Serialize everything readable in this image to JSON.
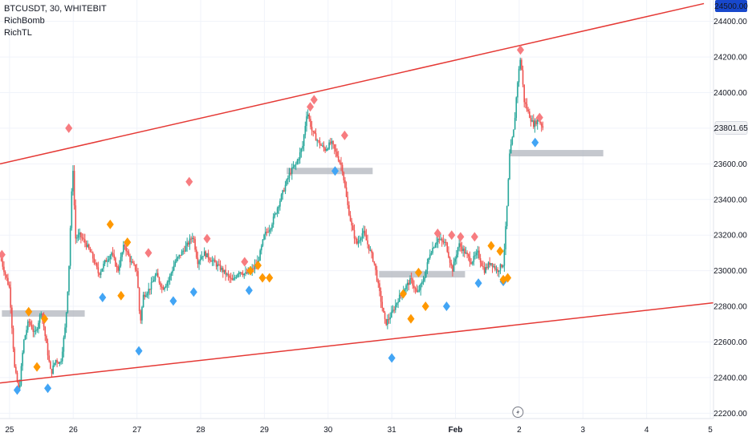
{
  "legend": {
    "symbol_line": "BTCUSDT, 30, WHITEBIT",
    "indicators": [
      "RichBomb",
      "RichTL"
    ]
  },
  "colors": {
    "up": "#26a69a",
    "down": "#ef5350",
    "trendline": "#e53935",
    "sell_marker": "#f77c80",
    "buy_marker": "#42a5f5",
    "signal_marker": "#ff9800",
    "zone": "#b2b5be",
    "last_price": "#131722"
  },
  "chart_data": {
    "type": "candlestick",
    "title": "BTCUSDT, 30, WHITEBIT",
    "ylim": [
      22170,
      24520
    ],
    "y_ticks": [
      22200,
      22400,
      22600,
      22800,
      23000,
      23200,
      23400,
      23600,
      23800,
      24000,
      24200,
      24400
    ],
    "x_ticks": [
      "25",
      "26",
      "27",
      "28",
      "29",
      "30",
      "31",
      "Feb",
      "2",
      "3",
      "4",
      "5"
    ],
    "x_tick_days": [
      0,
      1,
      2,
      3,
      4,
      5,
      6,
      7,
      8,
      9,
      10,
      11
    ],
    "x_range_days": [
      -0.15,
      11.05
    ],
    "price_path": [
      [
        -0.15,
        23080
      ],
      [
        0.0,
        22900
      ],
      [
        0.08,
        22450
      ],
      [
        0.15,
        22320
      ],
      [
        0.22,
        22600
      ],
      [
        0.3,
        22720
      ],
      [
        0.4,
        22640
      ],
      [
        0.5,
        22780
      ],
      [
        0.58,
        22580
      ],
      [
        0.65,
        22420
      ],
      [
        0.72,
        22500
      ],
      [
        0.8,
        22480
      ],
      [
        0.88,
        22700
      ],
      [
        0.93,
        23000
      ],
      [
        0.97,
        23400
      ],
      [
        1.0,
        23600
      ],
      [
        1.03,
        23180
      ],
      [
        1.1,
        23200
      ],
      [
        1.2,
        23150
      ],
      [
        1.3,
        23080
      ],
      [
        1.4,
        22980
      ],
      [
        1.5,
        23050
      ],
      [
        1.6,
        23100
      ],
      [
        1.7,
        23000
      ],
      [
        1.8,
        23150
      ],
      [
        1.9,
        23050
      ],
      [
        2.0,
        23000
      ],
      [
        2.05,
        22700
      ],
      [
        2.1,
        22860
      ],
      [
        2.2,
        22900
      ],
      [
        2.3,
        22980
      ],
      [
        2.4,
        22900
      ],
      [
        2.5,
        22950
      ],
      [
        2.6,
        23050
      ],
      [
        2.7,
        23100
      ],
      [
        2.8,
        23150
      ],
      [
        2.88,
        23200
      ],
      [
        2.95,
        23050
      ],
      [
        3.05,
        23100
      ],
      [
        3.2,
        23050
      ],
      [
        3.35,
        23000
      ],
      [
        3.5,
        22940
      ],
      [
        3.6,
        23000
      ],
      [
        3.7,
        22980
      ],
      [
        3.8,
        23000
      ],
      [
        3.9,
        23050
      ],
      [
        4.0,
        23200
      ],
      [
        4.1,
        23250
      ],
      [
        4.2,
        23350
      ],
      [
        4.3,
        23450
      ],
      [
        4.4,
        23550
      ],
      [
        4.5,
        23600
      ],
      [
        4.6,
        23700
      ],
      [
        4.67,
        23900
      ],
      [
        4.75,
        23780
      ],
      [
        4.85,
        23720
      ],
      [
        4.95,
        23680
      ],
      [
        5.05,
        23720
      ],
      [
        5.15,
        23640
      ],
      [
        5.22,
        23580
      ],
      [
        5.3,
        23380
      ],
      [
        5.38,
        23230
      ],
      [
        5.45,
        23150
      ],
      [
        5.55,
        23220
      ],
      [
        5.62,
        23150
      ],
      [
        5.72,
        23050
      ],
      [
        5.82,
        22850
      ],
      [
        5.9,
        22700
      ],
      [
        6.0,
        22760
      ],
      [
        6.1,
        22840
      ],
      [
        6.2,
        22900
      ],
      [
        6.3,
        22950
      ],
      [
        6.4,
        22870
      ],
      [
        6.5,
        22950
      ],
      [
        6.6,
        23100
      ],
      [
        6.72,
        23180
      ],
      [
        6.85,
        23150
      ],
      [
        6.95,
        23000
      ],
      [
        7.05,
        23150
      ],
      [
        7.15,
        23100
      ],
      [
        7.25,
        23050
      ],
      [
        7.35,
        23100
      ],
      [
        7.45,
        23000
      ],
      [
        7.55,
        23050
      ],
      [
        7.65,
        23000
      ],
      [
        7.75,
        23040
      ],
      [
        7.8,
        23300
      ],
      [
        7.85,
        23650
      ],
      [
        7.92,
        23800
      ],
      [
        7.97,
        24050
      ],
      [
        8.02,
        24200
      ],
      [
        8.08,
        23950
      ],
      [
        8.15,
        23880
      ],
      [
        8.22,
        23820
      ],
      [
        8.3,
        23850
      ],
      [
        8.38,
        23800
      ]
    ],
    "trendlines": [
      {
        "from": [
          -0.15,
          23600
        ],
        "to": [
          10.9,
          24500
        ]
      },
      {
        "from": [
          -0.15,
          22370
        ],
        "to": [
          11.05,
          22820
        ]
      }
    ],
    "zones": [
      {
        "x0": -0.12,
        "x1": 1.18,
        "price": 22760
      },
      {
        "x0": 4.35,
        "x1": 5.7,
        "price": 23560
      },
      {
        "x0": 5.8,
        "x1": 7.15,
        "price": 22980
      },
      {
        "x0": 7.85,
        "x1": 9.32,
        "price": 23660
      }
    ],
    "markers_sell": [
      [
        -0.12,
        23090
      ],
      [
        0.93,
        23800
      ],
      [
        2.82,
        23500
      ],
      [
        4.78,
        23960
      ],
      [
        6.72,
        23210
      ],
      [
        7.08,
        23190
      ],
      [
        8.02,
        24240
      ],
      [
        8.32,
        23860
      ],
      [
        2.18,
        23100
      ],
      [
        3.1,
        23180
      ],
      [
        4.72,
        23920
      ],
      [
        5.26,
        23760
      ],
      [
        3.69,
        23050
      ],
      [
        6.94,
        23200
      ],
      [
        7.3,
        23190
      ]
    ],
    "markers_buy": [
      [
        0.12,
        22330
      ],
      [
        0.6,
        22340
      ],
      [
        1.46,
        22850
      ],
      [
        2.03,
        22550
      ],
      [
        2.57,
        22830
      ],
      [
        2.89,
        22880
      ],
      [
        3.76,
        22890
      ],
      [
        5.11,
        23560
      ],
      [
        6.0,
        22510
      ],
      [
        6.86,
        22800
      ],
      [
        7.36,
        22930
      ],
      [
        8.25,
        23720
      ],
      [
        7.75,
        22940
      ]
    ],
    "markers_signal": [
      [
        0.3,
        22770
      ],
      [
        0.43,
        22460
      ],
      [
        0.55,
        22730
      ],
      [
        1.58,
        23260
      ],
      [
        1.75,
        22860
      ],
      [
        1.85,
        23160
      ],
      [
        3.78,
        23000
      ],
      [
        3.9,
        23030
      ],
      [
        3.97,
        22960
      ],
      [
        6.18,
        22870
      ],
      [
        6.3,
        22730
      ],
      [
        6.42,
        22990
      ],
      [
        6.53,
        22800
      ],
      [
        7.56,
        23140
      ],
      [
        7.7,
        23110
      ],
      [
        7.75,
        22950
      ],
      [
        7.82,
        22960
      ],
      [
        4.08,
        22960
      ]
    ],
    "last_price": 23801.65,
    "top_label": 24500.0,
    "lightning_day": 7.98
  },
  "price_axis": {
    "top_label": "24500.00",
    "last_price_label": "23801.65"
  }
}
